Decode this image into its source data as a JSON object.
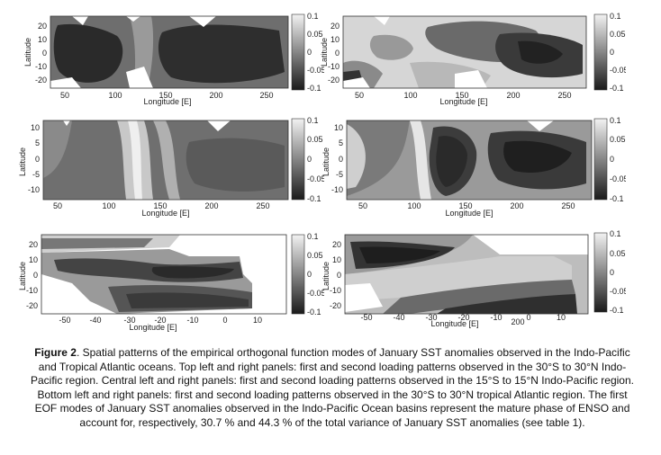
{
  "panels": [
    {
      "id": "top-left",
      "kind": "indo",
      "xticks": [
        "50",
        "100",
        "150",
        "200",
        "250"
      ],
      "yticks": [
        "20",
        "10",
        "0",
        "-10",
        "-20"
      ],
      "xlabel": "Longitude [E]",
      "ylabel": "Latitude",
      "colorbar": [
        "0.1",
        "0.05",
        "0",
        "-0.05",
        "-0.1"
      ]
    },
    {
      "id": "top-right",
      "kind": "indo",
      "xticks": [
        "50",
        "100",
        "150",
        "200",
        "250"
      ],
      "yticks": [
        "20",
        "10",
        "0",
        "-10",
        "-20"
      ],
      "xlabel": "Longitude [E]",
      "ylabel": "Latitude",
      "colorbar": [
        "0.1",
        "0.05",
        "0",
        "-0.05",
        "-0.1"
      ]
    },
    {
      "id": "middle-left",
      "kind": "indo-narrow",
      "xticks": [
        "50",
        "100",
        "150",
        "200",
        "250"
      ],
      "yticks": [
        "10",
        "5",
        "0",
        "-5",
        "-10"
      ],
      "xlabel": "Longitude [E]",
      "ylabel": "Latitude",
      "colorbar": [
        "0.1",
        "0.05",
        "0",
        "-0.05",
        "-0.1"
      ]
    },
    {
      "id": "middle-right",
      "kind": "indo-narrow",
      "xticks": [
        "50",
        "100",
        "150",
        "200",
        "250"
      ],
      "yticks": [
        "10",
        "5",
        "0",
        "-5",
        "-10"
      ],
      "xlabel": "Longitude [E]",
      "ylabel": "Latitude",
      "colorbar": [
        "0.1",
        "0.05",
        "0",
        "-0.05",
        "-0.1"
      ]
    },
    {
      "id": "bottom-left",
      "kind": "atlantic",
      "xticks": [
        "-50",
        "-40",
        "-30",
        "-20",
        "-10",
        "0",
        "10"
      ],
      "yticks": [
        "20",
        "10",
        "0",
        "-10",
        "-20"
      ],
      "xlabel": "Longitude [E]",
      "ylabel": "Latitude",
      "colorbar": [
        "0.1",
        "0.05",
        "0",
        "-0.05",
        "-0.1"
      ]
    },
    {
      "id": "bottom-right",
      "kind": "atlantic",
      "xticks": [
        "-50",
        "-40",
        "-30",
        "-20",
        "-10",
        "0",
        "10"
      ],
      "yticks": [
        "20",
        "10",
        "0",
        "-10",
        "-20"
      ],
      "xlabel": "Longitude [E]",
      "ylabel": "Latitude",
      "extra_label": "200",
      "colorbar": [
        "0.1",
        "0.05",
        "0",
        "-0.05",
        "-0.1"
      ]
    }
  ],
  "caption": {
    "label": "Figure 2",
    "text": ". Spatial patterns of the empirical orthogonal function modes of January SST anomalies observed in the Indo-Pacific and Tropical Atlantic oceans. Top left and right panels: first and second loading patterns observed in the 30°S to 30°N Indo-Pacific region. Central left and right panels: first and second loading patterns observed in the 15°S to 15°N Indo-Pacific region. Bottom left and right panels: first and second loading patterns observed in the 30°S to 30°N tropical Atlantic region. The first EOF modes of January SST anomalies observed in the Indo-Pacific Ocean basins represent the mature phase of ENSO and account for, respectively, 30.7 % and 44.3 % of the total variance of January SST anomalies (see table 1)."
  }
}
